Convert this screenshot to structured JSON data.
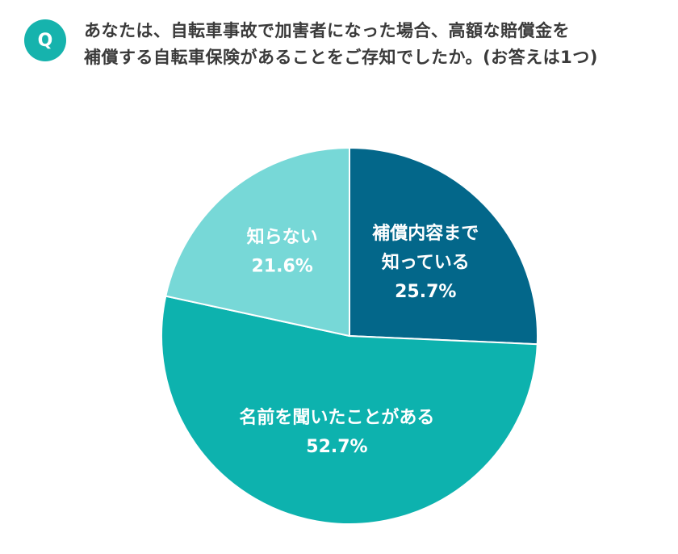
{
  "question": {
    "badge": "Q",
    "line1": "あなたは、自転車事故で加害者になった場合、高額な賠償金を",
    "line2": "補償する自転車保険があることをご存知でしたか。(お答えは1つ)"
  },
  "chart_data": {
    "type": "pie",
    "start_angle_deg": 0,
    "direction": "clockwise",
    "slices": [
      {
        "label_lines": [
          "補償内容まで",
          "知っている"
        ],
        "value": 25.7,
        "value_label": "25.7%",
        "color": "#03678a"
      },
      {
        "label_lines": [
          "名前を聞いたことがある"
        ],
        "value": 52.7,
        "value_label": "52.7%",
        "color": "#0db2ae"
      },
      {
        "label_lines": [
          "知らない"
        ],
        "value": 21.6,
        "value_label": "21.6%",
        "color": "#77d8d7"
      }
    ]
  }
}
